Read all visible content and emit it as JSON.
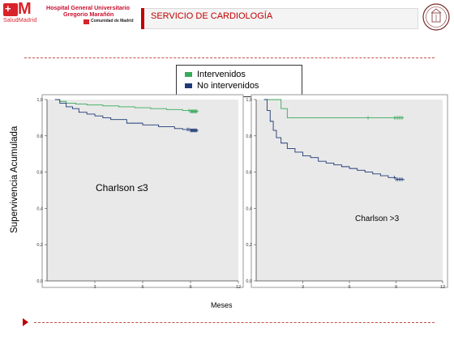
{
  "header": {
    "logo_mark": "M",
    "logo_plus": "+",
    "logo_sub": "SaludMadrid",
    "hospital_line1": "Hospital General Universitario",
    "hospital_line2": "Gregorio Marañón",
    "community": "Comunidad de Madrid",
    "slide_title": "SERVICIO DE CARDIOLOGÍA",
    "seal_icon": "university-seal-icon",
    "accent_color": "#c00000"
  },
  "legend": {
    "items": [
      {
        "label": "Intervenidos",
        "color": "#3aaa5c"
      },
      {
        "label": "No intervenidos",
        "color": "#1f3a75"
      }
    ]
  },
  "shared": {
    "ylabel": "Supervivencia Acumulada",
    "xlabel": "Meses"
  },
  "chart_data": [
    {
      "type": "line",
      "annotation": "Charlson ≤3",
      "xlim": [
        0,
        12
      ],
      "ylim": [
        0,
        1.0
      ],
      "xticks": [
        3,
        6,
        9,
        12
      ],
      "yticks": [
        0.0,
        0.2,
        0.4,
        0.6,
        0.8,
        1.0
      ],
      "xtick_labels": [
        "3",
        "6",
        "9",
        "12"
      ],
      "ytick_labels": [
        "0,0",
        "0,2",
        "0,4",
        "0,6",
        "0,8",
        "1,0"
      ],
      "series": [
        {
          "name": "Intervenidos",
          "color": "#3aaa5c",
          "x": [
            0.5,
            0.8,
            1.2,
            1.8,
            2.5,
            3.5,
            4.5,
            5.5,
            6.5,
            7.5,
            8.5,
            9.0,
            9.5
          ],
          "y": [
            1.0,
            0.99,
            0.98,
            0.975,
            0.97,
            0.965,
            0.96,
            0.955,
            0.95,
            0.945,
            0.94,
            0.935,
            0.935
          ],
          "censor_x": [
            8.9,
            9.0,
            9.05,
            9.1,
            9.15,
            9.2,
            9.25,
            9.3,
            9.35,
            9.4
          ]
        },
        {
          "name": "No intervenidos",
          "color": "#1f3a75",
          "x": [
            0.5,
            0.8,
            1.2,
            1.6,
            2.0,
            2.5,
            3.0,
            3.5,
            4.0,
            5.0,
            6.0,
            7.0,
            8.0,
            8.5,
            9.0,
            9.5
          ],
          "y": [
            1.0,
            0.98,
            0.96,
            0.95,
            0.93,
            0.92,
            0.91,
            0.9,
            0.89,
            0.87,
            0.86,
            0.85,
            0.84,
            0.835,
            0.83,
            0.83
          ],
          "censor_x": [
            8.8,
            8.9,
            9.0,
            9.05,
            9.1,
            9.15,
            9.2,
            9.25,
            9.3,
            9.35,
            9.4
          ]
        }
      ]
    },
    {
      "type": "line",
      "annotation": "Charlson >3",
      "xlim": [
        0,
        12
      ],
      "ylim": [
        0,
        1.0
      ],
      "xticks": [
        3,
        6,
        9,
        12
      ],
      "yticks": [
        0.0,
        0.2,
        0.4,
        0.6,
        0.8,
        1.0
      ],
      "xtick_labels": [
        "3",
        "6",
        "9",
        "12"
      ],
      "ytick_labels": [
        "0,0",
        "0,2",
        "0,4",
        "0,6",
        "0,8",
        "1,0"
      ],
      "series": [
        {
          "name": "Intervenidos",
          "color": "#3aaa5c",
          "x": [
            0.5,
            1.5,
            1.6,
            1.9,
            2.0,
            9.5
          ],
          "y": [
            1.0,
            1.0,
            0.95,
            0.95,
            0.9,
            0.9
          ],
          "censor_x": [
            7.2,
            8.9,
            9.0,
            9.1,
            9.2,
            9.3,
            9.4
          ]
        },
        {
          "name": "No intervenidos",
          "color": "#1f3a75",
          "x": [
            0.5,
            0.7,
            0.9,
            1.1,
            1.3,
            1.6,
            2.0,
            2.5,
            3.0,
            3.5,
            4.0,
            4.5,
            5.0,
            5.5,
            6.0,
            6.5,
            7.0,
            7.5,
            8.0,
            8.5,
            9.0,
            9.5
          ],
          "y": [
            1.0,
            0.94,
            0.88,
            0.83,
            0.79,
            0.76,
            0.73,
            0.71,
            0.69,
            0.68,
            0.66,
            0.65,
            0.64,
            0.63,
            0.62,
            0.61,
            0.6,
            0.59,
            0.58,
            0.57,
            0.56,
            0.555
          ],
          "censor_x": [
            8.9,
            9.0,
            9.1,
            9.2,
            9.3,
            9.4
          ]
        }
      ]
    }
  ]
}
